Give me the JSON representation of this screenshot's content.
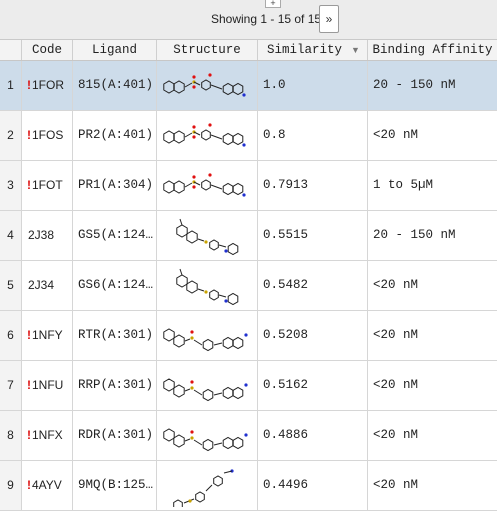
{
  "pager": {
    "plus": "+",
    "showing": "Showing 1 - 15 of 15",
    "next_label": "»"
  },
  "columns": {
    "code": "Code",
    "ligand": "Ligand",
    "structure": "Structure",
    "similarity": "Similarity",
    "affinity": "Binding Affinity"
  },
  "sort_icon": "sort-descending-triangle",
  "rows": [
    {
      "num": "1",
      "warn": "!",
      "code": "1FOR",
      "ligand": "815(A:401)",
      "similarity": "1.0",
      "affinity": "20 - 150 nM",
      "selected": true
    },
    {
      "num": "2",
      "warn": "!",
      "code": "1FOS",
      "ligand": "PR2(A:401)",
      "similarity": "0.8",
      "affinity": "<20 nM"
    },
    {
      "num": "3",
      "warn": "!",
      "code": "1FOT",
      "ligand": "PR1(A:304)",
      "similarity": "0.7913",
      "affinity": "1 to 5µM"
    },
    {
      "num": "4",
      "warn": "",
      "code": "2J38",
      "ligand": "GS5(A:124…",
      "similarity": "0.5515",
      "affinity": "20 - 150 nM"
    },
    {
      "num": "5",
      "warn": "",
      "code": "2J34",
      "ligand": "GS6(A:124…",
      "similarity": "0.5482",
      "affinity": "<20 nM"
    },
    {
      "num": "6",
      "warn": "!",
      "code": "1NFY",
      "ligand": "RTR(A:301)",
      "similarity": "0.5208",
      "affinity": "<20 nM"
    },
    {
      "num": "7",
      "warn": "!",
      "code": "1NFU",
      "ligand": "RRP(A:301)",
      "similarity": "0.5162",
      "affinity": "<20 nM"
    },
    {
      "num": "8",
      "warn": "!",
      "code": "1NFX",
      "ligand": "RDR(A:301)",
      "similarity": "0.4886",
      "affinity": "<20 nM"
    },
    {
      "num": "9",
      "warn": "!",
      "code": "4AYV",
      "ligand": "9MQ(B:125…",
      "similarity": "0.4496",
      "affinity": "<20 nM"
    }
  ],
  "colors": {
    "selected_row": "#cddcea",
    "warning": "#dd1111",
    "sulfur": "#c9a400",
    "oxygen": "#e01010",
    "nitrogen": "#2030d0"
  }
}
